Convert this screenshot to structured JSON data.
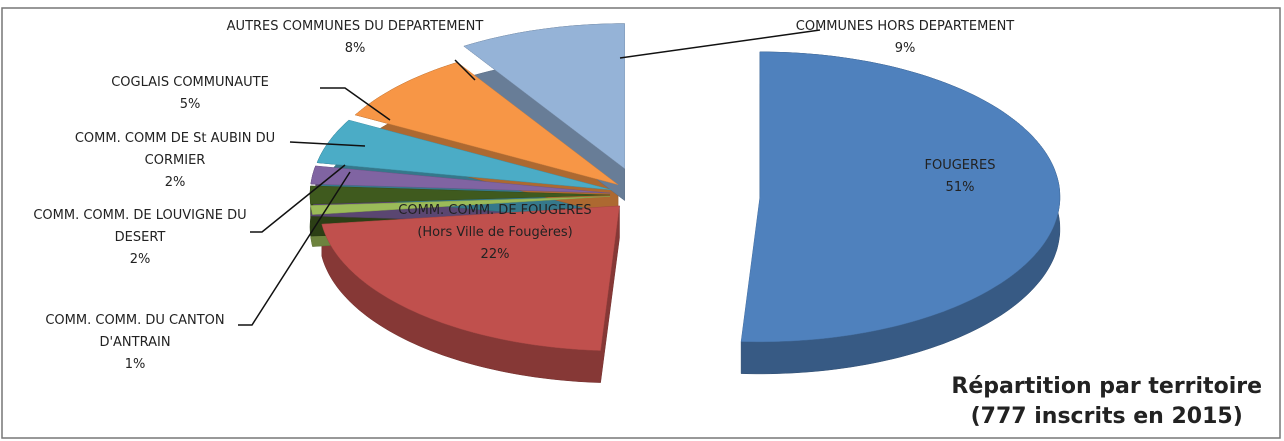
{
  "chart_data": {
    "type": "pie",
    "title": "Répartition par territoire",
    "subtitle": "(777 inscrits en 2015)",
    "categories": [
      "FOUGERES",
      "COMM. COMM. DE FOUGERES (Hors Ville de Fougères)",
      "COMM. COMM. DU CANTON D'ANTRAIN",
      "COMM. COMM. DE LOUVIGNE DU DESERT",
      "COMM. COMM DE St AUBIN DU CORMIER",
      "COGLAIS COMMUNAUTE",
      "AUTRES COMMUNES DU DEPARTEMENT",
      "COMMUNES HORS DEPARTEMENT"
    ],
    "values": [
      51,
      22,
      1,
      2,
      2,
      5,
      8,
      9
    ],
    "value_labels": [
      "51%",
      "22%",
      "1%",
      "2%",
      "2%",
      "5%",
      "8%",
      "9%"
    ],
    "colors": [
      "#4f81bd",
      "#c0504d",
      "#9bbb59",
      "#3f5a1e",
      "#8064a2",
      "#4bacc6",
      "#f79646",
      "#95b3d7",
      "#d99694"
    ]
  }
}
